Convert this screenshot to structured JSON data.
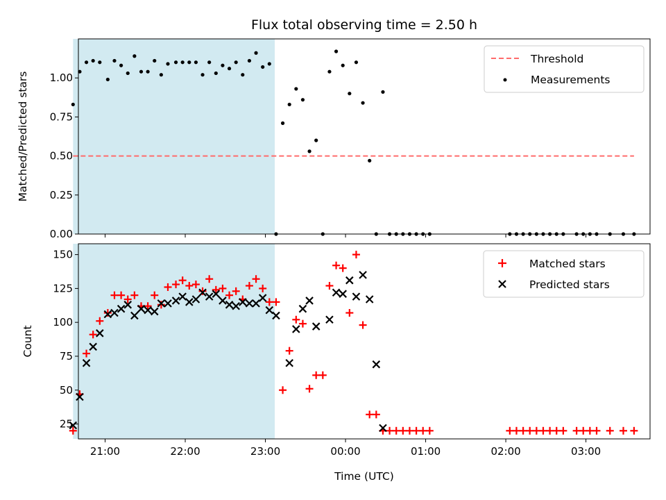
{
  "chart_data": [
    {
      "type": "scatter",
      "title": "Flux total observing time = 2.50 h",
      "xlabel": "",
      "ylabel": "Matched/Predicted stars",
      "xlim": [
        "20:40",
        "03:48"
      ],
      "ylim": [
        0,
        1.25
      ],
      "yticks": [
        "0.00",
        "0.25",
        "0.50",
        "0.75",
        "1.00"
      ],
      "ytick_values": [
        0,
        0.25,
        0.5,
        0.75,
        1.0
      ],
      "shaded_interval": [
        "20:36",
        "23:07"
      ],
      "shade_color": "#add8e6",
      "legend_position": "upper right",
      "threshold": {
        "name": "Threshold",
        "y": 0.5,
        "x_from": "20:36",
        "x_to": "03:36",
        "color": "#ff6b6b",
        "style": "dashed"
      },
      "series": [
        {
          "name": "Measurements",
          "marker": "dot",
          "color": "#000000",
          "x": [
            "20:36",
            "20:41",
            "20:46",
            "20:51",
            "20:56",
            "21:02",
            "21:07",
            "21:12",
            "21:17",
            "21:22",
            "21:27",
            "21:32",
            "21:37",
            "21:42",
            "21:47",
            "21:53",
            "21:58",
            "22:03",
            "22:08",
            "22:13",
            "22:18",
            "22:23",
            "22:28",
            "22:33",
            "22:38",
            "22:43",
            "22:48",
            "22:53",
            "22:58",
            "23:03",
            "23:08",
            "23:13",
            "23:18",
            "23:23",
            "23:28",
            "23:33",
            "23:38",
            "23:43",
            "23:48",
            "23:53",
            "23:58",
            "00:03",
            "00:08",
            "00:13",
            "00:18",
            "00:23",
            "00:28",
            "00:33",
            "00:38",
            "00:43",
            "00:48",
            "00:53",
            "00:58",
            "01:03",
            "02:03",
            "02:08",
            "02:13",
            "02:18",
            "02:23",
            "02:28",
            "02:33",
            "02:38",
            "02:43",
            "02:53",
            "02:58",
            "03:03",
            "03:08",
            "03:18",
            "03:28",
            "03:36"
          ],
          "y": [
            0.83,
            1.04,
            1.1,
            1.11,
            1.1,
            0.99,
            1.11,
            1.08,
            1.03,
            1.14,
            1.04,
            1.04,
            1.11,
            1.02,
            1.09,
            1.1,
            1.1,
            1.1,
            1.1,
            1.02,
            1.1,
            1.03,
            1.08,
            1.06,
            1.1,
            1.02,
            1.11,
            1.16,
            1.07,
            1.09,
            0,
            0.71,
            0.83,
            0.93,
            0.86,
            0.53,
            0.6,
            0,
            1.04,
            1.17,
            1.08,
            0.9,
            1.1,
            0.84,
            0.47,
            0,
            0.91,
            0,
            0,
            0,
            0,
            0,
            0,
            0,
            0,
            0,
            0,
            0,
            0,
            0,
            0,
            0,
            0,
            0,
            0,
            0,
            0,
            0,
            0,
            0
          ]
        }
      ]
    },
    {
      "type": "scatter",
      "title": "",
      "xlabel": "Time (UTC)",
      "ylabel": "Count",
      "xlim": [
        "20:40",
        "03:48"
      ],
      "ylim": [
        14,
        158
      ],
      "yticks": [
        "25",
        "50",
        "75",
        "100",
        "125",
        "150"
      ],
      "ytick_values": [
        25,
        50,
        75,
        100,
        125,
        150
      ],
      "xticks": [
        "21:00",
        "22:00",
        "23:00",
        "00:00",
        "01:00",
        "02:00",
        "03:00"
      ],
      "xtick_values": [
        "21:00",
        "22:00",
        "23:00",
        "00:00",
        "01:00",
        "02:00",
        "03:00"
      ],
      "shaded_interval": [
        "20:36",
        "23:07"
      ],
      "shade_color": "#add8e6",
      "legend_position": "upper right",
      "series": [
        {
          "name": "Matched stars",
          "marker": "plus",
          "color": "#ff0000",
          "x": [
            "20:36",
            "20:41",
            "20:46",
            "20:51",
            "20:56",
            "21:02",
            "21:07",
            "21:12",
            "21:17",
            "21:22",
            "21:27",
            "21:32",
            "21:37",
            "21:42",
            "21:47",
            "21:53",
            "21:58",
            "22:03",
            "22:08",
            "22:13",
            "22:18",
            "22:23",
            "22:28",
            "22:33",
            "22:38",
            "22:43",
            "22:48",
            "22:53",
            "22:58",
            "23:03",
            "23:08",
            "23:13",
            "23:18",
            "23:23",
            "23:28",
            "23:33",
            "23:38",
            "23:43",
            "23:48",
            "23:53",
            "23:58",
            "00:03",
            "00:08",
            "00:13",
            "00:18",
            "00:23",
            "00:28",
            "00:33",
            "00:38",
            "00:43",
            "00:48",
            "00:53",
            "00:58",
            "01:03",
            "02:03",
            "02:08",
            "02:13",
            "02:18",
            "02:23",
            "02:28",
            "02:33",
            "02:38",
            "02:43",
            "02:53",
            "02:58",
            "03:03",
            "03:08",
            "03:18",
            "03:28",
            "03:36"
          ],
          "y": [
            20,
            47,
            77,
            91,
            101,
            107,
            120,
            120,
            117,
            120,
            112,
            112,
            120,
            113,
            126,
            128,
            131,
            127,
            128,
            123,
            132,
            124,
            125,
            120,
            123,
            117,
            127,
            132,
            125,
            115,
            115,
            50,
            79,
            102,
            99,
            51,
            61,
            61,
            127,
            142,
            140,
            107,
            150,
            98,
            32,
            32,
            20,
            20,
            20,
            20,
            20,
            20,
            20,
            20,
            20,
            20,
            20,
            20,
            20,
            20,
            20,
            20,
            20,
            20,
            20,
            20,
            20,
            20,
            20,
            20
          ]
        },
        {
          "name": "Predicted stars",
          "marker": "x",
          "color": "#000000",
          "x": [
            "20:36",
            "20:41",
            "20:46",
            "20:51",
            "20:56",
            "21:02",
            "21:07",
            "21:12",
            "21:17",
            "21:22",
            "21:27",
            "21:32",
            "21:37",
            "21:42",
            "21:47",
            "21:53",
            "21:58",
            "22:03",
            "22:08",
            "22:13",
            "22:18",
            "22:23",
            "22:28",
            "22:33",
            "22:38",
            "22:43",
            "22:48",
            "22:53",
            "22:58",
            "23:03",
            "23:08",
            "23:18",
            "23:23",
            "23:28",
            "23:33",
            "23:38",
            "23:48",
            "23:53",
            "23:58",
            "00:03",
            "00:08",
            "00:13",
            "00:18",
            "00:23",
            "00:28"
          ],
          "y": [
            24,
            45,
            70,
            82,
            92,
            106,
            107,
            110,
            113,
            105,
            110,
            109,
            108,
            114,
            114,
            116,
            119,
            115,
            117,
            122,
            119,
            121,
            116,
            113,
            112,
            115,
            114,
            114,
            118,
            109,
            105,
            70,
            95,
            110,
            116,
            97,
            102,
            122,
            121,
            131,
            119,
            135,
            117,
            69,
            22
          ]
        }
      ]
    }
  ]
}
